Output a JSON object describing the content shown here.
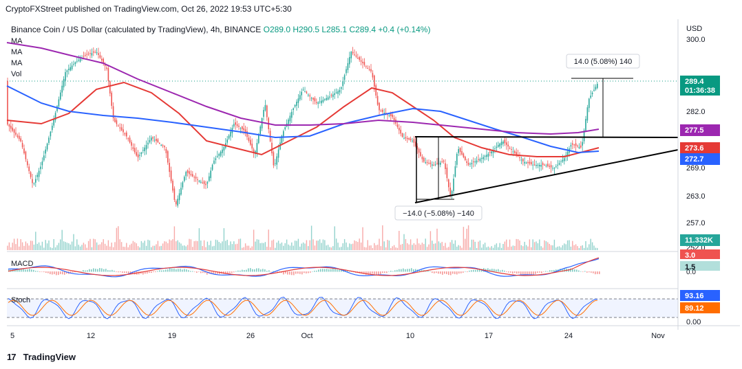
{
  "header": {
    "publisher": "CryptoFXStreet published on TradingView.com, Oct 26, 2022 19:53 UTC+5:30",
    "symbol": "Binance Coin / US Dollar (calculated by TradingView), 4h, BINANCE",
    "ohlc": "O289.0  H290.5  L285.1  C289.4  +0.4 (+0.14%)"
  },
  "indicators": [
    "MA",
    "MA",
    "MA",
    "Vol"
  ],
  "currency": "USD",
  "footer": {
    "brand": "TradingView",
    "logo": "17"
  },
  "chart_data": {
    "type": "candlestick",
    "x_ticks": [
      "5",
      "12",
      "19",
      "26",
      "Oct",
      "10",
      "17",
      "24",
      "Nov"
    ],
    "y_ticks": [
      "300.0",
      "282.0",
      "269.0",
      "263.0",
      "257.0",
      "252.0"
    ],
    "ylim": [
      252,
      302
    ],
    "price_label": {
      "value": "289.4",
      "countdown": "01:36:38",
      "color": "#089981"
    },
    "ma_labels": [
      {
        "value": "277.5",
        "color": "#9c27b0"
      },
      {
        "value": "273.6",
        "color": "#e53935"
      },
      {
        "value": "272.7",
        "color": "#2962ff"
      }
    ],
    "volume_label": "11.332K",
    "annotations": {
      "upper_measure": "14.0 (5.08%) 140",
      "lower_measure": "−14.0 (−5.08%) −140"
    },
    "macd": {
      "title": "MACD",
      "labels": [
        "3.0",
        "1.5",
        "0.0"
      ]
    },
    "stoch": {
      "title": "Stoch",
      "labels": [
        "93.16",
        "89.12",
        "0.00"
      ]
    },
    "series": [
      {
        "name": "MA",
        "color": "#9c27b0"
      },
      {
        "name": "MA",
        "color": "#e53935"
      },
      {
        "name": "MA",
        "color": "#2962ff"
      }
    ]
  }
}
